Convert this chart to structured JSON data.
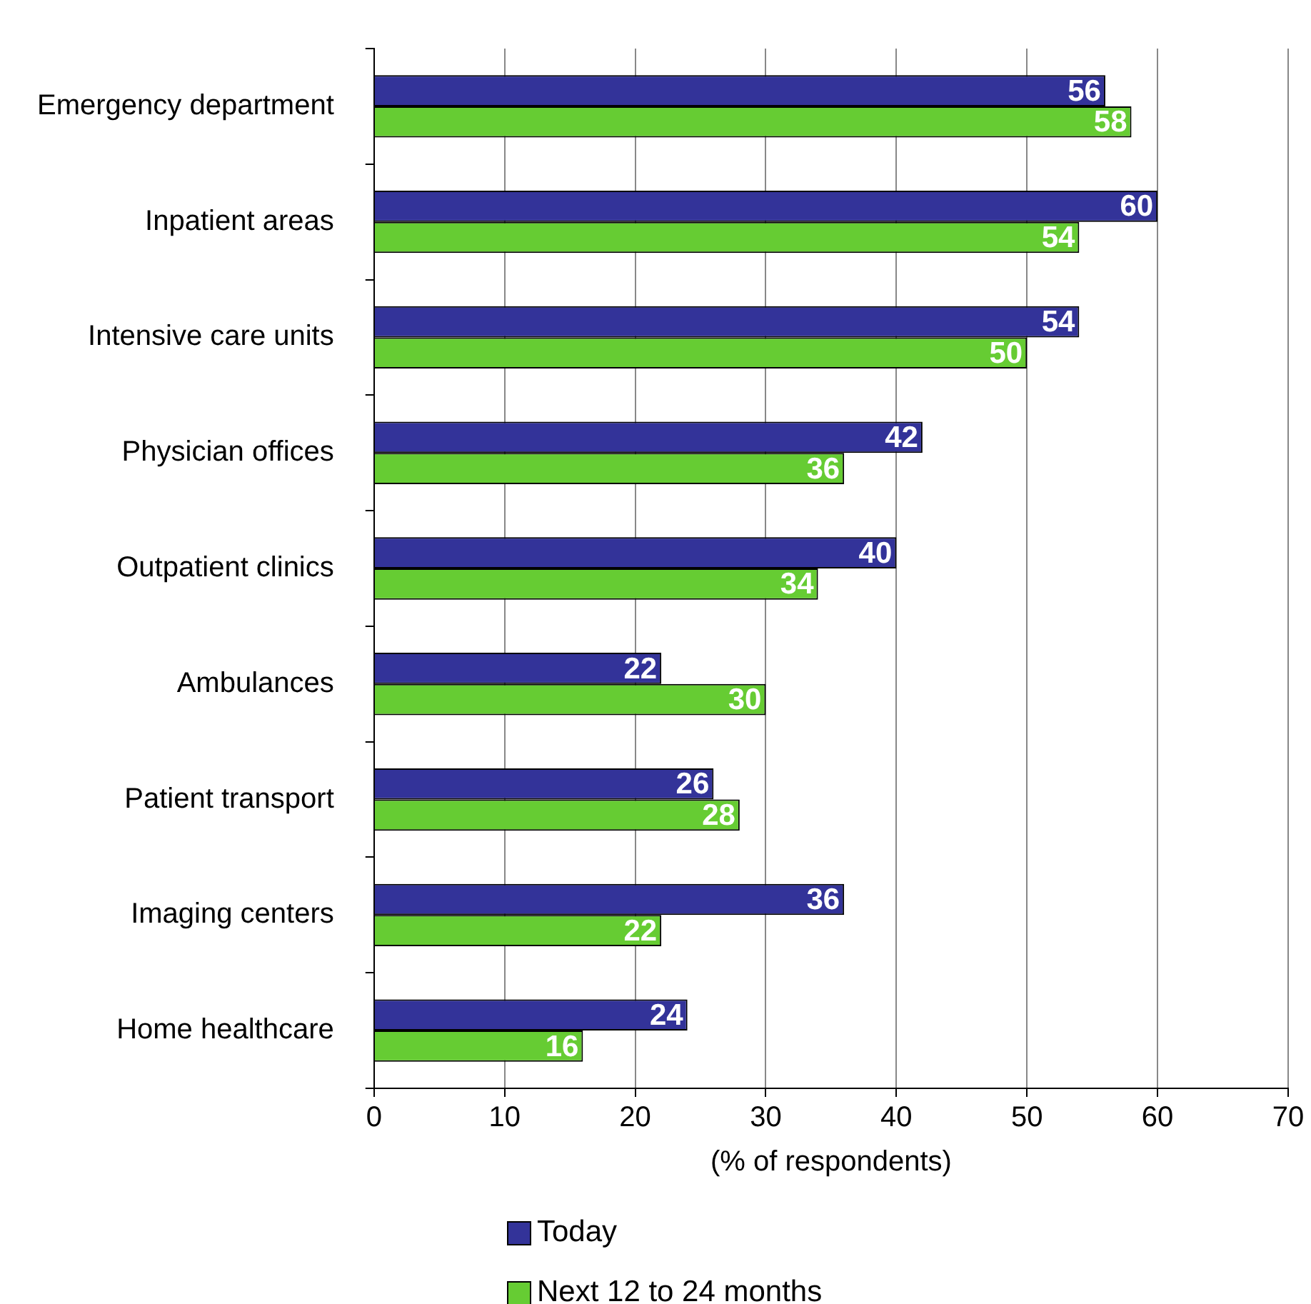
{
  "chart_data": {
    "type": "bar",
    "orientation": "horizontal",
    "xlabel": "(% of respondents)",
    "categories": [
      "Emergency department",
      "Inpatient areas",
      "Intensive care units",
      "Physician offices",
      "Outpatient clinics",
      "Ambulances",
      "Patient transport",
      "Imaging centers",
      "Home healthcare"
    ],
    "series": [
      {
        "name": "Today",
        "color": "#333399",
        "values": [
          56,
          60,
          54,
          42,
          40,
          22,
          26,
          36,
          24
        ]
      },
      {
        "name": "Next 12 to 24 months",
        "color": "#66cc33",
        "values": [
          58,
          54,
          50,
          36,
          34,
          30,
          28,
          22,
          16
        ]
      }
    ],
    "xlim": [
      0,
      70
    ],
    "xticks": [
      0,
      10,
      20,
      30,
      40,
      50,
      60,
      70
    ],
    "grid": "x",
    "legend": "bottom",
    "data_labels": true
  }
}
